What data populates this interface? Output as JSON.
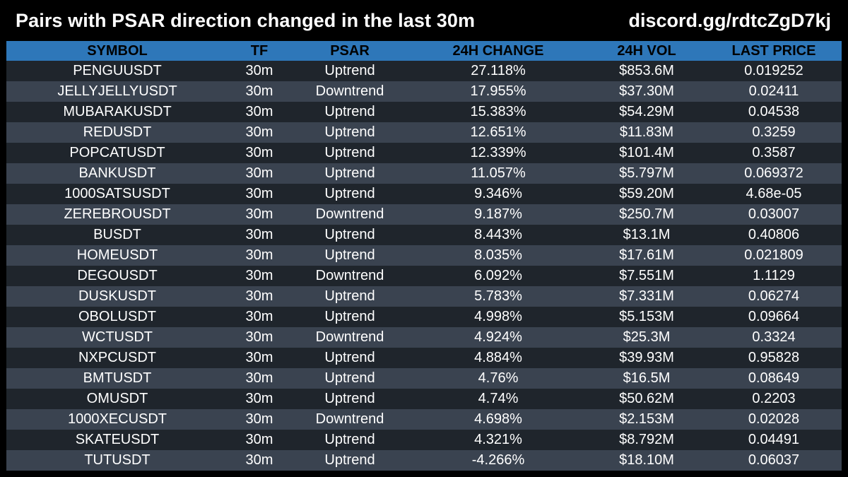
{
  "header": {
    "title": "Pairs with PSAR direction changed in the last 30m",
    "invite": "discord.gg/rdtcZgD7kj"
  },
  "table": {
    "columns": [
      "SYMBOL",
      "TF",
      "PSAR",
      "24H CHANGE",
      "24H VOL",
      "LAST PRICE"
    ],
    "rows": [
      [
        "PENGUUSDT",
        "30m",
        "Uptrend",
        "27.118%",
        "$853.6M",
        "0.019252"
      ],
      [
        "JELLYJELLYUSDT",
        "30m",
        "Downtrend",
        "17.955%",
        "$37.30M",
        "0.02411"
      ],
      [
        "MUBARAKUSDT",
        "30m",
        "Uptrend",
        "15.383%",
        "$54.29M",
        "0.04538"
      ],
      [
        "REDUSDT",
        "30m",
        "Uptrend",
        "12.651%",
        "$11.83M",
        "0.3259"
      ],
      [
        "POPCATUSDT",
        "30m",
        "Uptrend",
        "12.339%",
        "$101.4M",
        "0.3587"
      ],
      [
        "BANKUSDT",
        "30m",
        "Uptrend",
        "11.057%",
        "$5.797M",
        "0.069372"
      ],
      [
        "1000SATSUSDT",
        "30m",
        "Uptrend",
        "9.346%",
        "$59.20M",
        "4.68e-05"
      ],
      [
        "ZEREBROUSDT",
        "30m",
        "Downtrend",
        "9.187%",
        "$250.7M",
        "0.03007"
      ],
      [
        "BUSDT",
        "30m",
        "Uptrend",
        "8.443%",
        "$13.1M",
        "0.40806"
      ],
      [
        "HOMEUSDT",
        "30m",
        "Uptrend",
        "8.035%",
        "$17.61M",
        "0.021809"
      ],
      [
        "DEGOUSDT",
        "30m",
        "Downtrend",
        "6.092%",
        "$7.551M",
        "1.1129"
      ],
      [
        "DUSKUSDT",
        "30m",
        "Uptrend",
        "5.783%",
        "$7.331M",
        "0.06274"
      ],
      [
        "OBOLUSDT",
        "30m",
        "Uptrend",
        "4.998%",
        "$5.153M",
        "0.09664"
      ],
      [
        "WCTUSDT",
        "30m",
        "Downtrend",
        "4.924%",
        "$25.3M",
        "0.3324"
      ],
      [
        "NXPCUSDT",
        "30m",
        "Uptrend",
        "4.884%",
        "$39.93M",
        "0.95828"
      ],
      [
        "BMTUSDT",
        "30m",
        "Uptrend",
        "4.76%",
        "$16.5M",
        "0.08649"
      ],
      [
        "OMUSDT",
        "30m",
        "Uptrend",
        "4.74%",
        "$50.62M",
        "0.2203"
      ],
      [
        "1000XECUSDT",
        "30m",
        "Downtrend",
        "4.698%",
        "$2.153M",
        "0.02028"
      ],
      [
        "SKATEUSDT",
        "30m",
        "Uptrend",
        "4.321%",
        "$8.792M",
        "0.04491"
      ],
      [
        "TUTUSDT",
        "30m",
        "Uptrend",
        "-4.266%",
        "$18.10M",
        "0.06037"
      ]
    ]
  },
  "colors": {
    "background": "#000000",
    "header_bar": "#2e77b9",
    "row_dark": "#1f252c",
    "row_light": "#3a4350",
    "text": "#ffffff"
  }
}
